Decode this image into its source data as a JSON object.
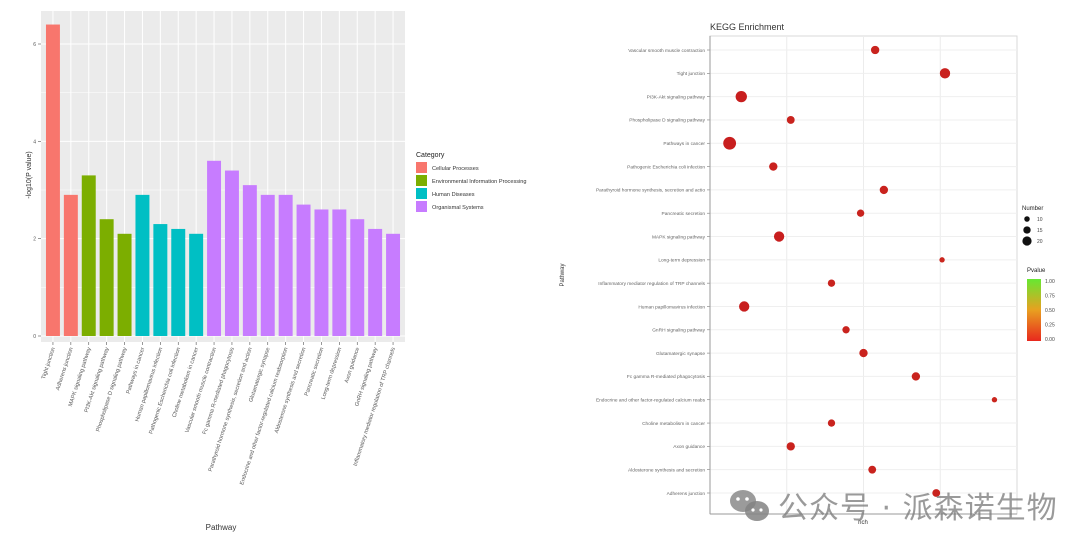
{
  "chart_data": [
    {
      "type": "bar",
      "title": "",
      "xlabel": "Pathway",
      "ylabel": "-log10(P value)",
      "ylim": [
        0,
        6.5
      ],
      "yticks": [
        "0",
        "2",
        "4",
        "6"
      ],
      "grid": true,
      "legend": {
        "title": "Category",
        "position": "right",
        "entries": [
          {
            "name": "Cellular Processes",
            "color": "#F8766D"
          },
          {
            "name": "Environmental Information Processing",
            "color": "#7CAE00"
          },
          {
            "name": "Human Diseases",
            "color": "#00BFC4"
          },
          {
            "name": "Organismal Systems",
            "color": "#C77CFF"
          }
        ]
      },
      "categories": [
        "Tight junction",
        "Adherens junction",
        "MAPK signaling pathway",
        "PI3K-Akt signaling pathway",
        "Phospholipase D signaling pathway",
        "Pathways in cancer",
        "Human papillomavirus infection",
        "Pathogenic Escherichia coli infection",
        "Choline metabolism in cancer",
        "Vascular smooth muscle contraction",
        "Fc gamma R-mediated phagocytosis",
        "Parathyroid hormone synthesis, secretion and action",
        "Glutamatergic synapse",
        "Endocrine and other factor-regulated calcium reabsorption",
        "Aldosterone synthesis and secretion",
        "Pancreatic secretion",
        "Long-term depression",
        "Axon guidance",
        "GnRH signaling pathway",
        "Inflammatory mediator regulation of TRP channels"
      ],
      "bar_category": [
        "Cellular Processes",
        "Cellular Processes",
        "Environmental Information Processing",
        "Environmental Information Processing",
        "Environmental Information Processing",
        "Human Diseases",
        "Human Diseases",
        "Human Diseases",
        "Human Diseases",
        "Organismal Systems",
        "Organismal Systems",
        "Organismal Systems",
        "Organismal Systems",
        "Organismal Systems",
        "Organismal Systems",
        "Organismal Systems",
        "Organismal Systems",
        "Organismal Systems",
        "Organismal Systems",
        "Organismal Systems"
      ],
      "values": [
        6.4,
        2.9,
        3.3,
        2.4,
        2.1,
        2.9,
        2.3,
        2.2,
        2.1,
        3.6,
        3.4,
        3.1,
        2.9,
        2.9,
        2.7,
        2.6,
        2.6,
        2.4,
        2.2,
        2.1
      ]
    },
    {
      "type": "scatter",
      "title": "KEGG Enrichment",
      "xlabel": "rich",
      "ylabel": "Pathway",
      "xlim": [
        0,
        1
      ],
      "x_units": "relative (axis tick labels not visible)",
      "grid": true,
      "legend": {
        "size_title": "Number",
        "size_entries": [
          "10",
          "15",
          "20"
        ],
        "size_values": [
          10,
          15,
          20
        ],
        "color_title": "Pvalue",
        "color_ticks": [
          "1.00",
          "0.75",
          "0.50",
          "0.25",
          "0.00"
        ],
        "color_low": "#E8281E",
        "color_high": "#66E832",
        "position": "right"
      },
      "categories": [
        "Vascular smooth muscle contraction",
        "Tight junction",
        "PI3K-Akt signaling pathway",
        "Phospholipase D signaling pathway",
        "Pathways in cancer",
        "Pathogenic Escherichia coli infection",
        "Parathyroid hormone synthesis, secretion and actio",
        "Pancreatic secretion",
        "MAPK signaling pathway",
        "Long-term depression",
        "Inflammatory mediator regulation of TRP channels",
        "Human papillomavirus infection",
        "GnRH signaling pathway",
        "Glutamatergic synapse",
        "Fc gamma R-mediated phagocytosis",
        "Endocrine and other factor-regulated calcium reabs",
        "Choline metabolism in cancer",
        "Axon guidance",
        "Aldosterone synthesis and secretion",
        "Adherens junction"
      ],
      "x": [
        0.54,
        0.78,
        0.08,
        0.25,
        0.04,
        0.19,
        0.57,
        0.49,
        0.21,
        0.77,
        0.39,
        0.09,
        0.44,
        0.5,
        0.68,
        0.95,
        0.39,
        0.25,
        0.53,
        0.75
      ],
      "number": [
        12,
        16,
        18,
        11,
        21,
        12,
        12,
        10,
        16,
        6,
        10,
        16,
        10,
        12,
        12,
        6,
        10,
        12,
        11,
        11
      ],
      "pvalue": [
        0.02,
        0.01,
        0.0,
        0.02,
        0.0,
        0.01,
        0.02,
        0.02,
        0.0,
        0.03,
        0.02,
        0.0,
        0.02,
        0.02,
        0.02,
        0.03,
        0.02,
        0.02,
        0.02,
        0.02
      ]
    }
  ],
  "watermark": {
    "text": "公众号 · 派森诺生物"
  }
}
